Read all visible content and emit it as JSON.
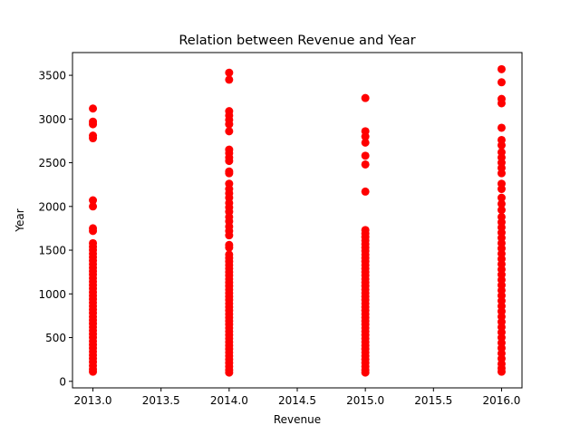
{
  "chart_data": {
    "type": "scatter",
    "title": "Relation between Revenue and Year",
    "xlabel": "Revenue",
    "ylabel": "Year",
    "xlim": [
      2012.85,
      2016.15
    ],
    "ylim": [
      -75,
      3760
    ],
    "x_ticks": [
      2013.0,
      2013.5,
      2014.0,
      2014.5,
      2015.0,
      2015.5,
      2016.0
    ],
    "x_tick_labels": [
      "2013.0",
      "2013.5",
      "2014.0",
      "2014.5",
      "2015.0",
      "2015.5",
      "2016.0"
    ],
    "y_ticks": [
      0,
      500,
      1000,
      1500,
      2000,
      2500,
      3000,
      3500
    ],
    "y_tick_labels": [
      "0",
      "500",
      "1000",
      "1500",
      "2000",
      "2500",
      "3000",
      "3500"
    ],
    "grid": false,
    "marker_color": "#ff0000",
    "series": [
      {
        "points": [
          [
            2013,
            3120
          ],
          [
            2013,
            2970
          ],
          [
            2013,
            2940
          ],
          [
            2013,
            2810
          ],
          [
            2013,
            2780
          ],
          [
            2013,
            2070
          ],
          [
            2013,
            2000
          ],
          [
            2013,
            1750
          ],
          [
            2013,
            1720
          ],
          [
            2013,
            1580
          ],
          [
            2013,
            1540
          ],
          [
            2013,
            1500
          ],
          [
            2013,
            1460
          ],
          [
            2013,
            1420
          ],
          [
            2013,
            1380
          ],
          [
            2013,
            1340
          ],
          [
            2013,
            1300
          ],
          [
            2013,
            1260
          ],
          [
            2013,
            1220
          ],
          [
            2013,
            1180
          ],
          [
            2013,
            1140
          ],
          [
            2013,
            1100
          ],
          [
            2013,
            1060
          ],
          [
            2013,
            1020
          ],
          [
            2013,
            980
          ],
          [
            2013,
            940
          ],
          [
            2013,
            900
          ],
          [
            2013,
            860
          ],
          [
            2013,
            820
          ],
          [
            2013,
            780
          ],
          [
            2013,
            740
          ],
          [
            2013,
            700
          ],
          [
            2013,
            660
          ],
          [
            2013,
            620
          ],
          [
            2013,
            580
          ],
          [
            2013,
            540
          ],
          [
            2013,
            500
          ],
          [
            2013,
            460
          ],
          [
            2013,
            420
          ],
          [
            2013,
            380
          ],
          [
            2013,
            340
          ],
          [
            2013,
            300
          ],
          [
            2013,
            260
          ],
          [
            2013,
            220
          ],
          [
            2013,
            180
          ],
          [
            2013,
            140
          ],
          [
            2013,
            110
          ],
          [
            2014,
            3530
          ],
          [
            2014,
            3450
          ],
          [
            2014,
            3090
          ],
          [
            2014,
            3040
          ],
          [
            2014,
            2990
          ],
          [
            2014,
            2940
          ],
          [
            2014,
            2860
          ],
          [
            2014,
            2650
          ],
          [
            2014,
            2610
          ],
          [
            2014,
            2560
          ],
          [
            2014,
            2520
          ],
          [
            2014,
            2400
          ],
          [
            2014,
            2380
          ],
          [
            2014,
            2260
          ],
          [
            2014,
            2200
          ],
          [
            2014,
            2150
          ],
          [
            2014,
            2100
          ],
          [
            2014,
            2040
          ],
          [
            2014,
            1990
          ],
          [
            2014,
            1940
          ],
          [
            2014,
            1880
          ],
          [
            2014,
            1830
          ],
          [
            2014,
            1770
          ],
          [
            2014,
            1720
          ],
          [
            2014,
            1670
          ],
          [
            2014,
            1560
          ],
          [
            2014,
            1530
          ],
          [
            2014,
            1450
          ],
          [
            2014,
            1410
          ],
          [
            2014,
            1370
          ],
          [
            2014,
            1330
          ],
          [
            2014,
            1290
          ],
          [
            2014,
            1250
          ],
          [
            2014,
            1210
          ],
          [
            2014,
            1170
          ],
          [
            2014,
            1130
          ],
          [
            2014,
            1090
          ],
          [
            2014,
            1050
          ],
          [
            2014,
            1010
          ],
          [
            2014,
            970
          ],
          [
            2014,
            930
          ],
          [
            2014,
            890
          ],
          [
            2014,
            850
          ],
          [
            2014,
            810
          ],
          [
            2014,
            770
          ],
          [
            2014,
            730
          ],
          [
            2014,
            690
          ],
          [
            2014,
            650
          ],
          [
            2014,
            610
          ],
          [
            2014,
            570
          ],
          [
            2014,
            530
          ],
          [
            2014,
            490
          ],
          [
            2014,
            450
          ],
          [
            2014,
            410
          ],
          [
            2014,
            370
          ],
          [
            2014,
            330
          ],
          [
            2014,
            290
          ],
          [
            2014,
            250
          ],
          [
            2014,
            210
          ],
          [
            2014,
            170
          ],
          [
            2014,
            130
          ],
          [
            2014,
            100
          ],
          [
            2015,
            3240
          ],
          [
            2015,
            2860
          ],
          [
            2015,
            2800
          ],
          [
            2015,
            2730
          ],
          [
            2015,
            2580
          ],
          [
            2015,
            2480
          ],
          [
            2015,
            2170
          ],
          [
            2015,
            1730
          ],
          [
            2015,
            1690
          ],
          [
            2015,
            1650
          ],
          [
            2015,
            1610
          ],
          [
            2015,
            1570
          ],
          [
            2015,
            1530
          ],
          [
            2015,
            1490
          ],
          [
            2015,
            1450
          ],
          [
            2015,
            1410
          ],
          [
            2015,
            1370
          ],
          [
            2015,
            1330
          ],
          [
            2015,
            1290
          ],
          [
            2015,
            1250
          ],
          [
            2015,
            1210
          ],
          [
            2015,
            1170
          ],
          [
            2015,
            1130
          ],
          [
            2015,
            1090
          ],
          [
            2015,
            1050
          ],
          [
            2015,
            1010
          ],
          [
            2015,
            970
          ],
          [
            2015,
            930
          ],
          [
            2015,
            890
          ],
          [
            2015,
            850
          ],
          [
            2015,
            810
          ],
          [
            2015,
            770
          ],
          [
            2015,
            730
          ],
          [
            2015,
            690
          ],
          [
            2015,
            650
          ],
          [
            2015,
            610
          ],
          [
            2015,
            570
          ],
          [
            2015,
            530
          ],
          [
            2015,
            490
          ],
          [
            2015,
            450
          ],
          [
            2015,
            410
          ],
          [
            2015,
            370
          ],
          [
            2015,
            330
          ],
          [
            2015,
            290
          ],
          [
            2015,
            250
          ],
          [
            2015,
            210
          ],
          [
            2015,
            170
          ],
          [
            2015,
            130
          ],
          [
            2015,
            100
          ],
          [
            2016,
            3570
          ],
          [
            2016,
            3420
          ],
          [
            2016,
            3230
          ],
          [
            2016,
            3180
          ],
          [
            2016,
            2900
          ],
          [
            2016,
            2760
          ],
          [
            2016,
            2700
          ],
          [
            2016,
            2620
          ],
          [
            2016,
            2560
          ],
          [
            2016,
            2500
          ],
          [
            2016,
            2440
          ],
          [
            2016,
            2380
          ],
          [
            2016,
            2260
          ],
          [
            2016,
            2200
          ],
          [
            2016,
            2100
          ],
          [
            2016,
            2030
          ],
          [
            2016,
            1960
          ],
          [
            2016,
            1880
          ],
          [
            2016,
            1820
          ],
          [
            2016,
            1760
          ],
          [
            2016,
            1700
          ],
          [
            2016,
            1640
          ],
          [
            2016,
            1580
          ],
          [
            2016,
            1520
          ],
          [
            2016,
            1460
          ],
          [
            2016,
            1400
          ],
          [
            2016,
            1340
          ],
          [
            2016,
            1280
          ],
          [
            2016,
            1220
          ],
          [
            2016,
            1160
          ],
          [
            2016,
            1100
          ],
          [
            2016,
            1040
          ],
          [
            2016,
            980
          ],
          [
            2016,
            920
          ],
          [
            2016,
            860
          ],
          [
            2016,
            800
          ],
          [
            2016,
            740
          ],
          [
            2016,
            680
          ],
          [
            2016,
            620
          ],
          [
            2016,
            560
          ],
          [
            2016,
            500
          ],
          [
            2016,
            440
          ],
          [
            2016,
            380
          ],
          [
            2016,
            320
          ],
          [
            2016,
            260
          ],
          [
            2016,
            200
          ],
          [
            2016,
            150
          ],
          [
            2016,
            110
          ]
        ]
      }
    ]
  }
}
